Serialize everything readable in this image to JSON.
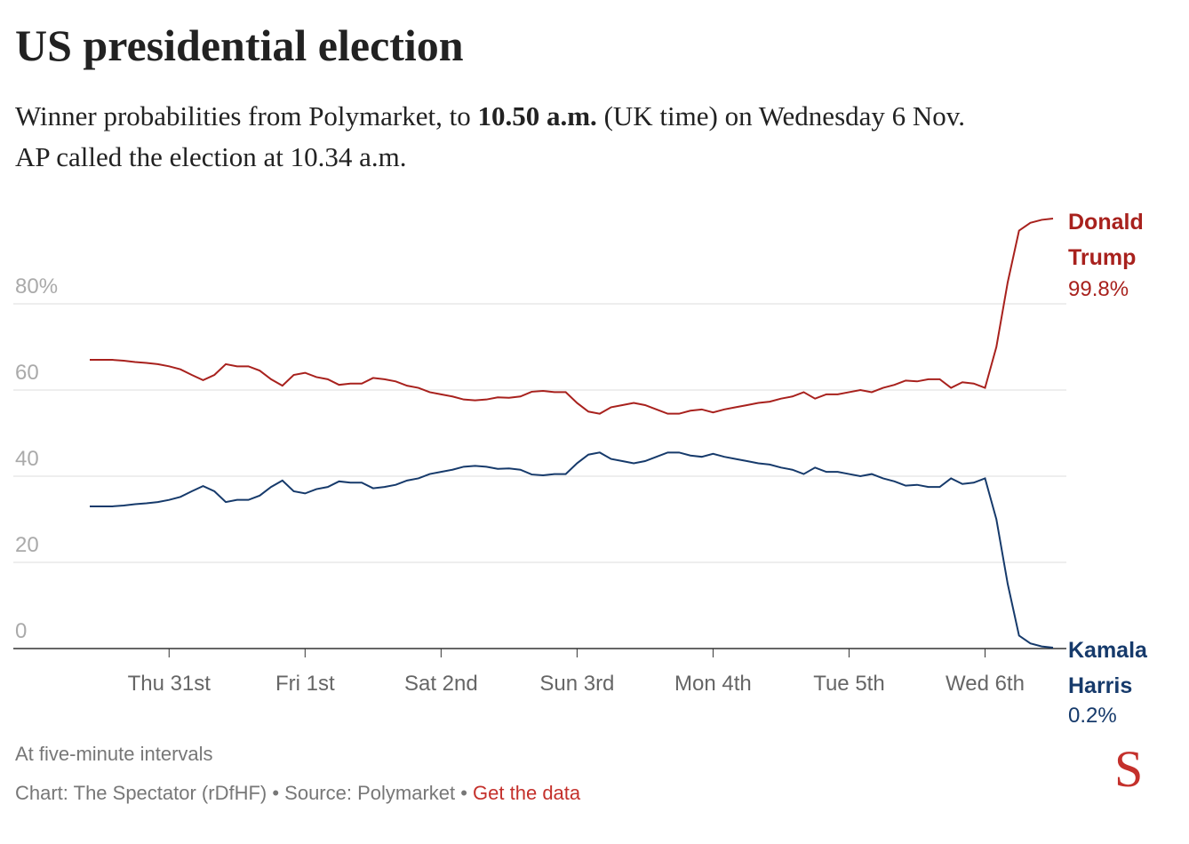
{
  "chart_data": {
    "type": "line",
    "title": "US presidential election",
    "subtitle": [
      "Winner probabilities from Polymarket, to ",
      "10.50 a.m.",
      " (UK time) on Wednesday 6 Nov."
    ],
    "subtitle_line2": "AP called the election at 10.34 a.m.",
    "note": "At five-minute intervals",
    "source": "Chart: The Spectator (rDfHF) • Source: Polymarket • ",
    "source_link": "Get the data",
    "logo": "S",
    "categories": [
      null,
      null,
      null,
      null,
      null,
      null,
      null,
      "Thu 31st",
      null,
      null,
      null,
      null,
      null,
      null,
      null,
      null,
      null,
      null,
      null,
      "Fri 1st",
      null,
      null,
      null,
      null,
      null,
      null,
      null,
      null,
      null,
      null,
      null,
      "Sat 2nd",
      null,
      null,
      null,
      null,
      null,
      null,
      null,
      null,
      null,
      null,
      null,
      "Sun 3rd",
      null,
      null,
      null,
      null,
      null,
      null,
      null,
      null,
      null,
      null,
      null,
      "Mon 4th",
      null,
      null,
      null,
      null,
      null,
      null,
      null,
      null,
      null,
      null,
      null,
      "Tue 5th",
      null,
      null,
      null,
      null,
      null,
      null,
      null,
      null,
      null,
      null,
      null,
      "Wed 6th",
      null,
      null,
      null,
      null,
      null,
      null
    ],
    "ylim": [
      0,
      103
    ],
    "yticks": [
      {
        "value": 0,
        "label": "0"
      },
      {
        "value": 20,
        "label": "20"
      },
      {
        "value": 40,
        "label": "40"
      },
      {
        "value": 60,
        "label": "60"
      },
      {
        "value": 80,
        "label": "80%"
      }
    ],
    "grid": true,
    "series": [
      {
        "name": "Donald Trump",
        "color": "#a8211d",
        "end_label": "99.8%",
        "values": [
          67,
          67,
          67,
          66.8,
          66.5,
          66.3,
          66,
          65.5,
          64.8,
          63.5,
          62.3,
          63.5,
          66,
          65.5,
          65.5,
          64.5,
          62.5,
          61,
          63.5,
          64,
          63,
          62.5,
          61.2,
          61.5,
          61.5,
          62.8,
          62.5,
          62,
          61,
          60.5,
          59.5,
          59,
          58.5,
          57.8,
          57.6,
          57.8,
          58.3,
          58.2,
          58.5,
          59.6,
          59.8,
          59.5,
          59.5,
          57,
          55,
          54.5,
          56,
          56.5,
          57,
          56.5,
          55.5,
          54.5,
          54.5,
          55.2,
          55.5,
          54.8,
          55.5,
          56,
          56.5,
          57,
          57.3,
          58,
          58.5,
          59.5,
          58,
          59,
          59,
          59.5,
          60,
          59.5,
          60.5,
          61.2,
          62.2,
          62,
          62.5,
          62.5,
          60.5,
          61.8,
          61.5,
          60.5,
          70,
          85,
          97,
          98.8,
          99.5,
          99.8
        ]
      },
      {
        "name": "Kamala Harris",
        "color": "#163a6b",
        "end_label": "0.2%",
        "values": [
          33,
          33,
          33,
          33.2,
          33.5,
          33.7,
          34,
          34.5,
          35.2,
          36.5,
          37.7,
          36.5,
          34,
          34.5,
          34.5,
          35.5,
          37.5,
          39,
          36.5,
          36,
          37,
          37.5,
          38.8,
          38.5,
          38.5,
          37.2,
          37.5,
          38,
          39,
          39.5,
          40.5,
          41,
          41.5,
          42.2,
          42.4,
          42.2,
          41.7,
          41.8,
          41.5,
          40.4,
          40.2,
          40.5,
          40.5,
          43,
          45,
          45.5,
          44,
          43.5,
          43,
          43.5,
          44.5,
          45.5,
          45.5,
          44.8,
          44.5,
          45.2,
          44.5,
          44,
          43.5,
          43,
          42.7,
          42,
          41.5,
          40.5,
          42,
          41,
          41,
          40.5,
          40,
          40.5,
          39.5,
          38.8,
          37.8,
          38,
          37.5,
          37.5,
          39.5,
          38.2,
          38.5,
          39.5,
          30,
          15,
          3,
          1.2,
          0.5,
          0.2
        ]
      }
    ]
  }
}
